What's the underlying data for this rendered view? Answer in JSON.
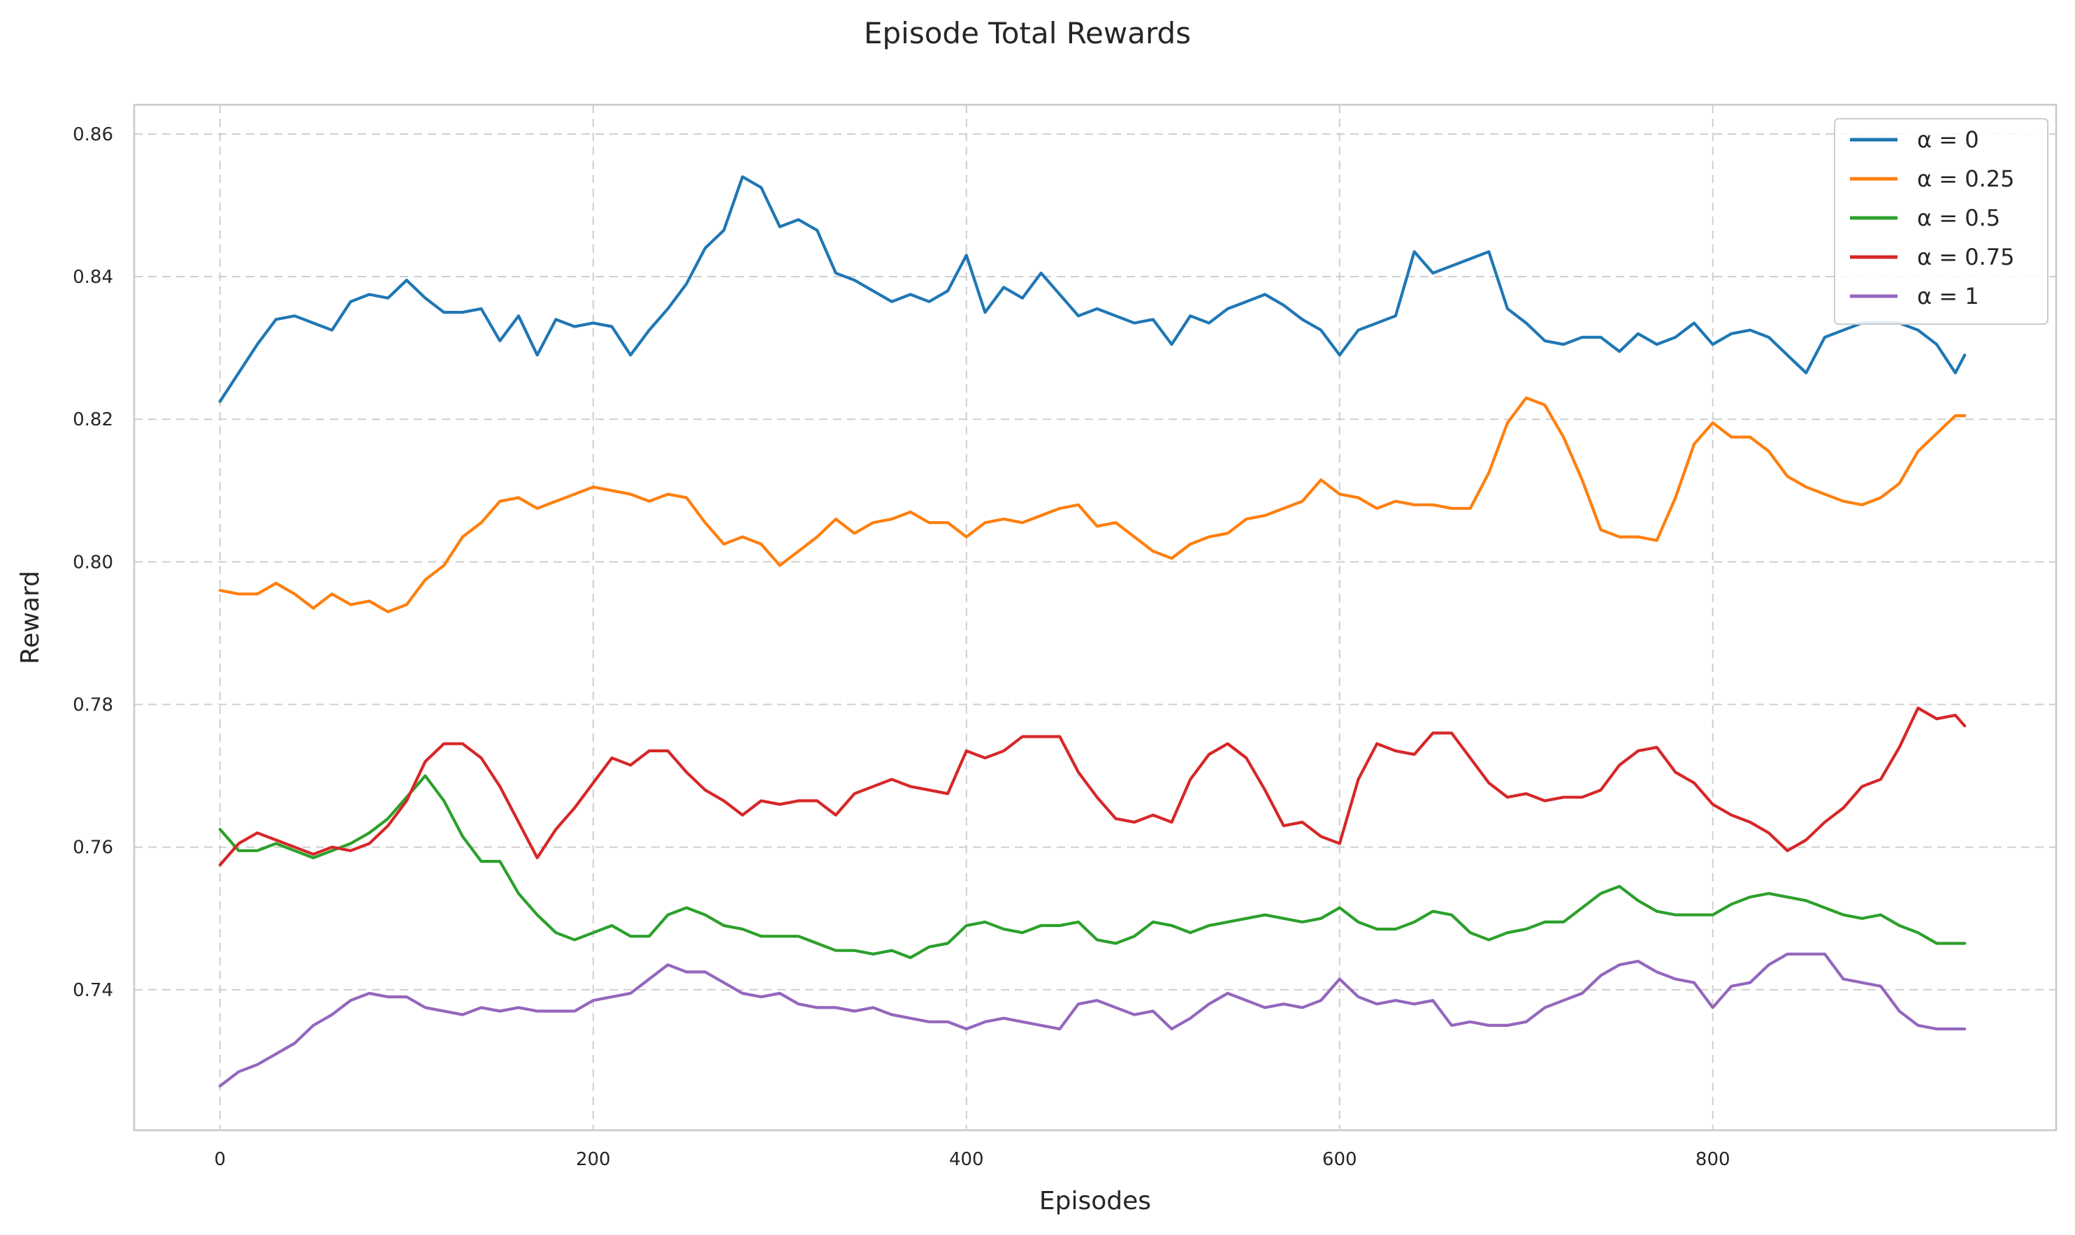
{
  "chart_data": {
    "type": "line",
    "title": "Episode Total Rewards",
    "xlabel": "Episodes",
    "ylabel": "Reward",
    "xlim": [
      -46,
      984
    ],
    "ylim": [
      0.7203,
      0.8641
    ],
    "xticks": [
      0,
      200,
      400,
      600,
      800
    ],
    "xtick_labels": [
      "0",
      "200",
      "400",
      "600",
      "800"
    ],
    "yticks": [
      0.74,
      0.76,
      0.78,
      0.8,
      0.82,
      0.84,
      0.86
    ],
    "ytick_labels": [
      "0.74",
      "0.76",
      "0.78",
      "0.80",
      "0.82",
      "0.84",
      "0.86"
    ],
    "grid": true,
    "legend_position": "top-right",
    "series": [
      {
        "name": "α = 0",
        "color": "#1f77b4",
        "x": [
          0,
          10,
          20,
          30,
          40,
          50,
          60,
          70,
          80,
          90,
          100,
          110,
          120,
          130,
          140,
          150,
          160,
          170,
          180,
          190,
          200,
          210,
          220,
          230,
          240,
          250,
          260,
          270,
          280,
          290,
          300,
          310,
          320,
          330,
          340,
          350,
          360,
          370,
          380,
          390,
          400,
          410,
          420,
          430,
          440,
          450,
          460,
          470,
          480,
          490,
          500,
          510,
          520,
          530,
          540,
          550,
          560,
          570,
          580,
          590,
          600,
          610,
          620,
          630,
          640,
          650,
          660,
          670,
          680,
          690,
          700,
          710,
          720,
          730,
          740,
          750,
          760,
          770,
          780,
          790,
          800,
          810,
          820,
          830,
          840,
          850,
          860,
          870,
          880,
          890,
          900,
          910,
          920,
          930,
          935
        ],
        "y": [
          0.8225,
          0.8265,
          0.8305,
          0.834,
          0.8345,
          0.8335,
          0.8325,
          0.8365,
          0.8375,
          0.837,
          0.8395,
          0.837,
          0.835,
          0.835,
          0.8355,
          0.831,
          0.8345,
          0.829,
          0.834,
          0.833,
          0.8335,
          0.833,
          0.829,
          0.8325,
          0.8355,
          0.839,
          0.844,
          0.8465,
          0.854,
          0.8525,
          0.847,
          0.848,
          0.8465,
          0.8405,
          0.8395,
          0.838,
          0.8365,
          0.8375,
          0.8365,
          0.838,
          0.843,
          0.835,
          0.8385,
          0.837,
          0.8405,
          0.8375,
          0.8345,
          0.8355,
          0.8345,
          0.8335,
          0.834,
          0.8305,
          0.8345,
          0.8335,
          0.8355,
          0.8365,
          0.8375,
          0.836,
          0.834,
          0.8325,
          0.829,
          0.8325,
          0.8335,
          0.8345,
          0.8435,
          0.8405,
          0.8415,
          0.8425,
          0.8435,
          0.8355,
          0.8335,
          0.831,
          0.8305,
          0.8315,
          0.8315,
          0.8295,
          0.832,
          0.8305,
          0.8315,
          0.8335,
          0.8305,
          0.832,
          0.8325,
          0.8315,
          0.829,
          0.8265,
          0.8315,
          0.8325,
          0.8335,
          0.8335,
          0.8335,
          0.8325,
          0.8305,
          0.8265,
          0.829
        ]
      },
      {
        "name": "α = 0.25",
        "color": "#ff7f0e",
        "x": [
          0,
          10,
          20,
          30,
          40,
          50,
          60,
          70,
          80,
          90,
          100,
          110,
          120,
          130,
          140,
          150,
          160,
          170,
          180,
          190,
          200,
          210,
          220,
          230,
          240,
          250,
          260,
          270,
          280,
          290,
          300,
          310,
          320,
          330,
          340,
          350,
          360,
          370,
          380,
          390,
          400,
          410,
          420,
          430,
          440,
          450,
          460,
          470,
          480,
          490,
          500,
          510,
          520,
          530,
          540,
          550,
          560,
          570,
          580,
          590,
          600,
          610,
          620,
          630,
          640,
          650,
          660,
          670,
          680,
          690,
          700,
          710,
          720,
          730,
          740,
          750,
          760,
          770,
          780,
          790,
          800,
          810,
          820,
          830,
          840,
          850,
          860,
          870,
          880,
          890,
          900,
          910,
          920,
          930,
          935
        ],
        "y": [
          0.796,
          0.7955,
          0.7955,
          0.797,
          0.7955,
          0.7935,
          0.7955,
          0.794,
          0.7945,
          0.793,
          0.794,
          0.7975,
          0.7995,
          0.8035,
          0.8055,
          0.8085,
          0.809,
          0.8075,
          0.8085,
          0.8095,
          0.8105,
          0.81,
          0.8095,
          0.8085,
          0.8095,
          0.809,
          0.8055,
          0.8025,
          0.8035,
          0.8025,
          0.7995,
          0.8015,
          0.8035,
          0.806,
          0.804,
          0.8055,
          0.806,
          0.807,
          0.8055,
          0.8055,
          0.8035,
          0.8055,
          0.806,
          0.8055,
          0.8065,
          0.8075,
          0.808,
          0.805,
          0.8055,
          0.8035,
          0.8015,
          0.8005,
          0.8025,
          0.8035,
          0.804,
          0.806,
          0.8065,
          0.8075,
          0.8085,
          0.8115,
          0.8095,
          0.809,
          0.8075,
          0.8085,
          0.808,
          0.808,
          0.8075,
          0.8075,
          0.8125,
          0.8195,
          0.823,
          0.822,
          0.8175,
          0.8115,
          0.8045,
          0.8035,
          0.8035,
          0.803,
          0.809,
          0.8165,
          0.8195,
          0.8175,
          0.8175,
          0.8155,
          0.812,
          0.8105,
          0.8095,
          0.8085,
          0.808,
          0.809,
          0.811,
          0.8155,
          0.818,
          0.8205,
          0.8205
        ]
      },
      {
        "name": "α = 0.5",
        "color": "#2ca02c",
        "x": [
          0,
          10,
          20,
          30,
          40,
          50,
          60,
          70,
          80,
          90,
          100,
          110,
          120,
          130,
          140,
          150,
          160,
          170,
          180,
          190,
          200,
          210,
          220,
          230,
          240,
          250,
          260,
          270,
          280,
          290,
          300,
          310,
          320,
          330,
          340,
          350,
          360,
          370,
          380,
          390,
          400,
          410,
          420,
          430,
          440,
          450,
          460,
          470,
          480,
          490,
          500,
          510,
          520,
          530,
          540,
          550,
          560,
          570,
          580,
          590,
          600,
          610,
          620,
          630,
          640,
          650,
          660,
          670,
          680,
          690,
          700,
          710,
          720,
          730,
          740,
          750,
          760,
          770,
          780,
          790,
          800,
          810,
          820,
          830,
          840,
          850,
          860,
          870,
          880,
          890,
          900,
          910,
          920,
          930,
          935
        ],
        "y": [
          0.7625,
          0.7595,
          0.7595,
          0.7605,
          0.7595,
          0.7585,
          0.7595,
          0.7605,
          0.762,
          0.764,
          0.767,
          0.77,
          0.7665,
          0.7615,
          0.758,
          0.758,
          0.7535,
          0.7505,
          0.748,
          0.747,
          0.748,
          0.749,
          0.7475,
          0.7475,
          0.7505,
          0.7515,
          0.7505,
          0.749,
          0.7485,
          0.7475,
          0.7475,
          0.7475,
          0.7465,
          0.7455,
          0.7455,
          0.745,
          0.7455,
          0.7445,
          0.746,
          0.7465,
          0.749,
          0.7495,
          0.7485,
          0.748,
          0.749,
          0.749,
          0.7495,
          0.747,
          0.7465,
          0.7475,
          0.7495,
          0.749,
          0.748,
          0.749,
          0.7495,
          0.75,
          0.7505,
          0.75,
          0.7495,
          0.75,
          0.7515,
          0.7495,
          0.7485,
          0.7485,
          0.7495,
          0.751,
          0.7505,
          0.748,
          0.747,
          0.748,
          0.7485,
          0.7495,
          0.7495,
          0.7515,
          0.7535,
          0.7545,
          0.7525,
          0.751,
          0.7505,
          0.7505,
          0.7505,
          0.752,
          0.753,
          0.7535,
          0.753,
          0.7525,
          0.7515,
          0.7505,
          0.75,
          0.7505,
          0.749,
          0.748,
          0.7465,
          0.7465,
          0.7465
        ]
      },
      {
        "name": "α = 0.75",
        "color": "#d62728",
        "x": [
          0,
          10,
          20,
          30,
          40,
          50,
          60,
          70,
          80,
          90,
          100,
          110,
          120,
          130,
          140,
          150,
          160,
          170,
          180,
          190,
          200,
          210,
          220,
          230,
          240,
          250,
          260,
          270,
          280,
          290,
          300,
          310,
          320,
          330,
          340,
          350,
          360,
          370,
          380,
          390,
          400,
          410,
          420,
          430,
          440,
          450,
          460,
          470,
          480,
          490,
          500,
          510,
          520,
          530,
          540,
          550,
          560,
          570,
          580,
          590,
          600,
          610,
          620,
          630,
          640,
          650,
          660,
          670,
          680,
          690,
          700,
          710,
          720,
          730,
          740,
          750,
          760,
          770,
          780,
          790,
          800,
          810,
          820,
          830,
          840,
          850,
          860,
          870,
          880,
          890,
          900,
          910,
          920,
          930,
          935
        ],
        "y": [
          0.7575,
          0.7605,
          0.762,
          0.761,
          0.76,
          0.759,
          0.76,
          0.7595,
          0.7605,
          0.763,
          0.7665,
          0.772,
          0.7745,
          0.7745,
          0.7725,
          0.7685,
          0.7635,
          0.7585,
          0.7625,
          0.7655,
          0.769,
          0.7725,
          0.7715,
          0.7735,
          0.7735,
          0.7705,
          0.768,
          0.7665,
          0.7645,
          0.7665,
          0.766,
          0.7665,
          0.7665,
          0.7645,
          0.7675,
          0.7685,
          0.7695,
          0.7685,
          0.768,
          0.7675,
          0.7735,
          0.7725,
          0.7735,
          0.7755,
          0.7755,
          0.7755,
          0.7705,
          0.767,
          0.764,
          0.7635,
          0.7645,
          0.7635,
          0.7695,
          0.773,
          0.7745,
          0.7725,
          0.768,
          0.763,
          0.7635,
          0.7615,
          0.7605,
          0.7695,
          0.7745,
          0.7735,
          0.773,
          0.776,
          0.776,
          0.7725,
          0.769,
          0.767,
          0.7675,
          0.7665,
          0.767,
          0.767,
          0.768,
          0.7715,
          0.7735,
          0.774,
          0.7705,
          0.769,
          0.766,
          0.7645,
          0.7635,
          0.762,
          0.7595,
          0.761,
          0.7635,
          0.7655,
          0.7685,
          0.7695,
          0.774,
          0.7795,
          0.778,
          0.7785,
          0.777
        ]
      },
      {
        "name": "α = 1",
        "color": "#9467bd",
        "x": [
          0,
          10,
          20,
          30,
          40,
          50,
          60,
          70,
          80,
          90,
          100,
          110,
          120,
          130,
          140,
          150,
          160,
          170,
          180,
          190,
          200,
          210,
          220,
          230,
          240,
          250,
          260,
          270,
          280,
          290,
          300,
          310,
          320,
          330,
          340,
          350,
          360,
          370,
          380,
          390,
          400,
          410,
          420,
          430,
          440,
          450,
          460,
          470,
          480,
          490,
          500,
          510,
          520,
          530,
          540,
          550,
          560,
          570,
          580,
          590,
          600,
          610,
          620,
          630,
          640,
          650,
          660,
          670,
          680,
          690,
          700,
          710,
          720,
          730,
          740,
          750,
          760,
          770,
          780,
          790,
          800,
          810,
          820,
          830,
          840,
          850,
          860,
          870,
          880,
          890,
          900,
          910,
          920,
          930,
          935
        ],
        "y": [
          0.7265,
          0.7285,
          0.7295,
          0.731,
          0.7325,
          0.735,
          0.7365,
          0.7385,
          0.7395,
          0.739,
          0.739,
          0.7375,
          0.737,
          0.7365,
          0.7375,
          0.737,
          0.7375,
          0.737,
          0.737,
          0.737,
          0.7385,
          0.739,
          0.7395,
          0.7415,
          0.7435,
          0.7425,
          0.7425,
          0.741,
          0.7395,
          0.739,
          0.7395,
          0.738,
          0.7375,
          0.7375,
          0.737,
          0.7375,
          0.7365,
          0.736,
          0.7355,
          0.7355,
          0.7345,
          0.7355,
          0.736,
          0.7355,
          0.735,
          0.7345,
          0.738,
          0.7385,
          0.7375,
          0.7365,
          0.737,
          0.7345,
          0.736,
          0.738,
          0.7395,
          0.7385,
          0.7375,
          0.738,
          0.7375,
          0.7385,
          0.7415,
          0.739,
          0.738,
          0.7385,
          0.738,
          0.7385,
          0.735,
          0.7355,
          0.735,
          0.735,
          0.7355,
          0.7375,
          0.7385,
          0.7395,
          0.742,
          0.7435,
          0.744,
          0.7425,
          0.7415,
          0.741,
          0.7375,
          0.7405,
          0.741,
          0.7435,
          0.745,
          0.745,
          0.745,
          0.7415,
          0.741,
          0.7405,
          0.737,
          0.735,
          0.7345,
          0.7345,
          0.7345
        ]
      }
    ]
  }
}
